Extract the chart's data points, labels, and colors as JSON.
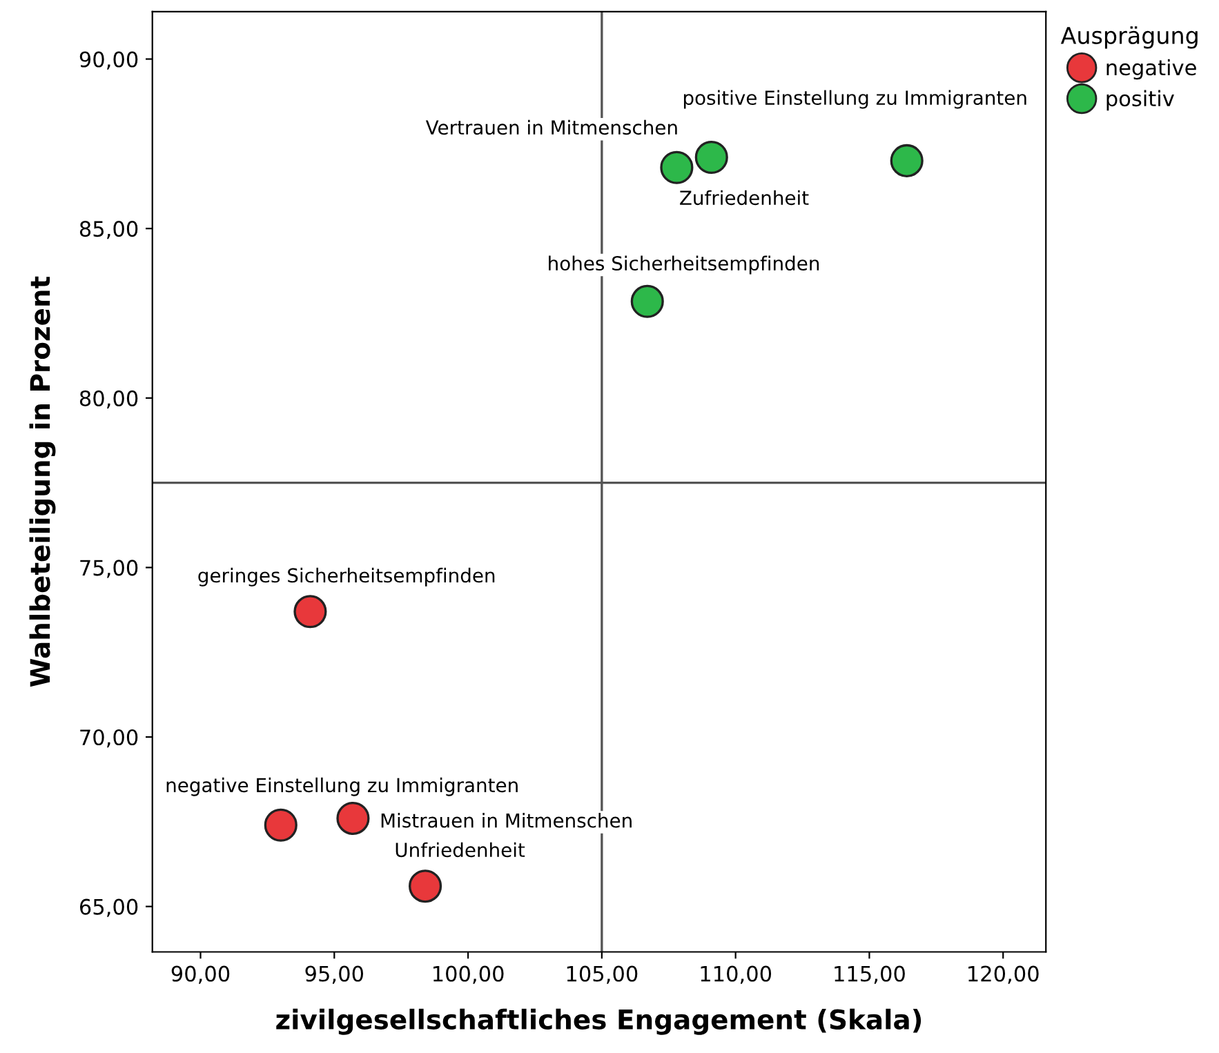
{
  "chart_data": {
    "type": "scatter",
    "xlabel": "zivilgesellschaftliches Engagement (Skala)",
    "ylabel": "Wahlbeteiligung in Prozent",
    "legend_title": "Ausprägung",
    "series": [
      {
        "name": "negative",
        "color": "#e8383b",
        "x": [
          94.1,
          93.0,
          95.7,
          98.4
        ],
        "values": [
          73.7,
          67.4,
          67.6,
          65.6
        ]
      },
      {
        "name": "positiv",
        "color": "#2db84a",
        "x": [
          107.8,
          109.1,
          116.4,
          106.7
        ],
        "values": [
          86.8,
          87.1,
          87.0,
          82.85
        ]
      }
    ],
    "annotations": [
      {
        "text": "geringes Sicherheitsempfinden",
        "x": 94.1,
        "y": 73.7
      },
      {
        "text": "negative Einstellung zu Immigranten",
        "x": 93.0,
        "y": 67.4
      },
      {
        "text": "Mistrauen in Mitmenschen",
        "x": 95.7,
        "y": 67.6
      },
      {
        "text": "Unfriedenheit",
        "x": 98.4,
        "y": 65.6
      },
      {
        "text": "Vertrauen in Mitmenschen",
        "x": 107.8,
        "y": 86.8
      },
      {
        "text": "Zufriedenheit",
        "x": 109.1,
        "y": 87.1
      },
      {
        "text": "positive Einstellung zu Immigranten",
        "x": 116.4,
        "y": 87.0
      },
      {
        "text": "hohes Sicherheitsempfinden",
        "x": 106.7,
        "y": 82.85
      }
    ],
    "ref_lines": [
      {
        "axis": "x",
        "value": 105,
        "color": "#555555"
      },
      {
        "axis": "y",
        "value": 77.5,
        "color": "#555555"
      }
    ],
    "xlim": [
      88.2,
      121.6
    ],
    "ylim": [
      63.66,
      91.4
    ],
    "xticks": [
      {
        "value": 90,
        "label": "90,00"
      },
      {
        "value": 95,
        "label": "95,00"
      },
      {
        "value": 100,
        "label": "100,00"
      },
      {
        "value": 105,
        "label": "105,00"
      },
      {
        "value": 110,
        "label": "110,00"
      },
      {
        "value": 115,
        "label": "115,00"
      },
      {
        "value": 120,
        "label": "120,00"
      }
    ],
    "yticks": [
      {
        "value": 65,
        "label": "65,00"
      },
      {
        "value": 70,
        "label": "70,00"
      },
      {
        "value": 75,
        "label": "75,00"
      },
      {
        "value": 80,
        "label": "80,00"
      },
      {
        "value": 85,
        "label": "85,00"
      },
      {
        "value": 90,
        "label": "90,00"
      }
    ],
    "marker": "circle",
    "grid": false,
    "legend": "top right"
  }
}
